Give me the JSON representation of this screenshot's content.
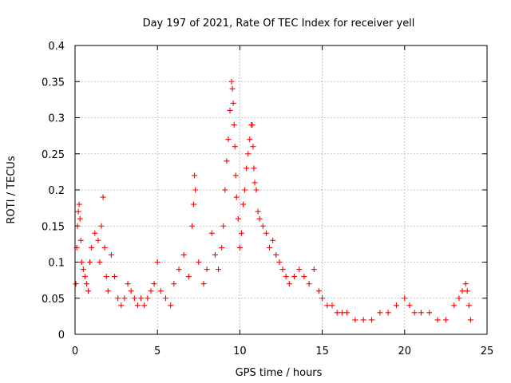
{
  "chart_data": {
    "type": "scatter",
    "title": "Day 197 of 2021, Rate Of TEC Index for receiver yell",
    "xlabel": "GPS time / hours",
    "ylabel": "ROTI / TECUs",
    "xlim": [
      0,
      25
    ],
    "ylim": [
      0,
      0.4
    ],
    "xticks": [
      0,
      5,
      10,
      15,
      20,
      25
    ],
    "xtick_labels": [
      "0",
      "5",
      "10",
      "15",
      "20",
      "25"
    ],
    "yticks": [
      0,
      0.05,
      0.1,
      0.15,
      0.2,
      0.25,
      0.3,
      0.35,
      0.4
    ],
    "ytick_labels": [
      "0",
      "0.05",
      "0.1",
      "0.15",
      "0.2",
      "0.25",
      "0.3",
      "0.35",
      "0.4"
    ],
    "grid": true,
    "marker": "+",
    "series": [
      {
        "name": "ROTI",
        "color": "#ff0000",
        "x": [
          0.05,
          0.1,
          0.15,
          0.2,
          0.25,
          0.3,
          0.35,
          0.4,
          0.5,
          0.6,
          0.7,
          0.8,
          0.9,
          1.0,
          1.2,
          1.4,
          1.5,
          1.6,
          1.7,
          1.8,
          1.9,
          2.0,
          2.2,
          2.4,
          2.6,
          2.8,
          3.0,
          3.2,
          3.4,
          3.6,
          3.8,
          4.0,
          4.2,
          4.4,
          4.6,
          4.8,
          5.0,
          5.2,
          5.5,
          5.8,
          6.0,
          6.3,
          6.6,
          6.9,
          7.1,
          7.2,
          7.25,
          7.3,
          7.5,
          7.8,
          8.0,
          8.3,
          8.5,
          8.7,
          8.9,
          9.0,
          9.1,
          9.2,
          9.3,
          9.4,
          9.5,
          9.55,
          9.6,
          9.65,
          9.7,
          9.75,
          9.8,
          9.9,
          10.0,
          10.1,
          10.2,
          10.3,
          10.4,
          10.5,
          10.6,
          10.7,
          10.75,
          10.8,
          10.85,
          10.9,
          11.0,
          11.1,
          11.2,
          11.4,
          11.6,
          11.8,
          12.0,
          12.2,
          12.4,
          12.6,
          12.8,
          13.0,
          13.3,
          13.6,
          13.9,
          14.2,
          14.5,
          14.8,
          15.0,
          15.3,
          15.6,
          15.9,
          16.2,
          16.5,
          17.0,
          17.5,
          18.0,
          18.5,
          19.0,
          19.5,
          20.0,
          20.3,
          20.6,
          21.0,
          21.5,
          22.0,
          22.5,
          23.0,
          23.3,
          23.5,
          23.7,
          23.8,
          23.9,
          24.0
        ],
        "y": [
          0.07,
          0.12,
          0.15,
          0.17,
          0.18,
          0.16,
          0.13,
          0.1,
          0.09,
          0.08,
          0.07,
          0.06,
          0.1,
          0.12,
          0.14,
          0.13,
          0.1,
          0.15,
          0.19,
          0.12,
          0.08,
          0.06,
          0.11,
          0.08,
          0.05,
          0.04,
          0.05,
          0.07,
          0.06,
          0.05,
          0.04,
          0.05,
          0.04,
          0.05,
          0.06,
          0.07,
          0.1,
          0.06,
          0.05,
          0.04,
          0.07,
          0.09,
          0.11,
          0.08,
          0.15,
          0.18,
          0.22,
          0.2,
          0.1,
          0.07,
          0.09,
          0.14,
          0.11,
          0.09,
          0.12,
          0.15,
          0.2,
          0.24,
          0.27,
          0.31,
          0.35,
          0.34,
          0.32,
          0.29,
          0.26,
          0.22,
          0.19,
          0.16,
          0.12,
          0.14,
          0.18,
          0.2,
          0.23,
          0.25,
          0.27,
          0.29,
          0.29,
          0.26,
          0.23,
          0.21,
          0.2,
          0.17,
          0.16,
          0.15,
          0.14,
          0.12,
          0.13,
          0.11,
          0.1,
          0.09,
          0.08,
          0.07,
          0.08,
          0.09,
          0.08,
          0.07,
          0.09,
          0.06,
          0.05,
          0.04,
          0.04,
          0.03,
          0.03,
          0.03,
          0.02,
          0.02,
          0.02,
          0.03,
          0.03,
          0.04,
          0.05,
          0.04,
          0.03,
          0.03,
          0.03,
          0.02,
          0.02,
          0.04,
          0.05,
          0.06,
          0.07,
          0.06,
          0.04,
          0.02
        ]
      }
    ]
  }
}
